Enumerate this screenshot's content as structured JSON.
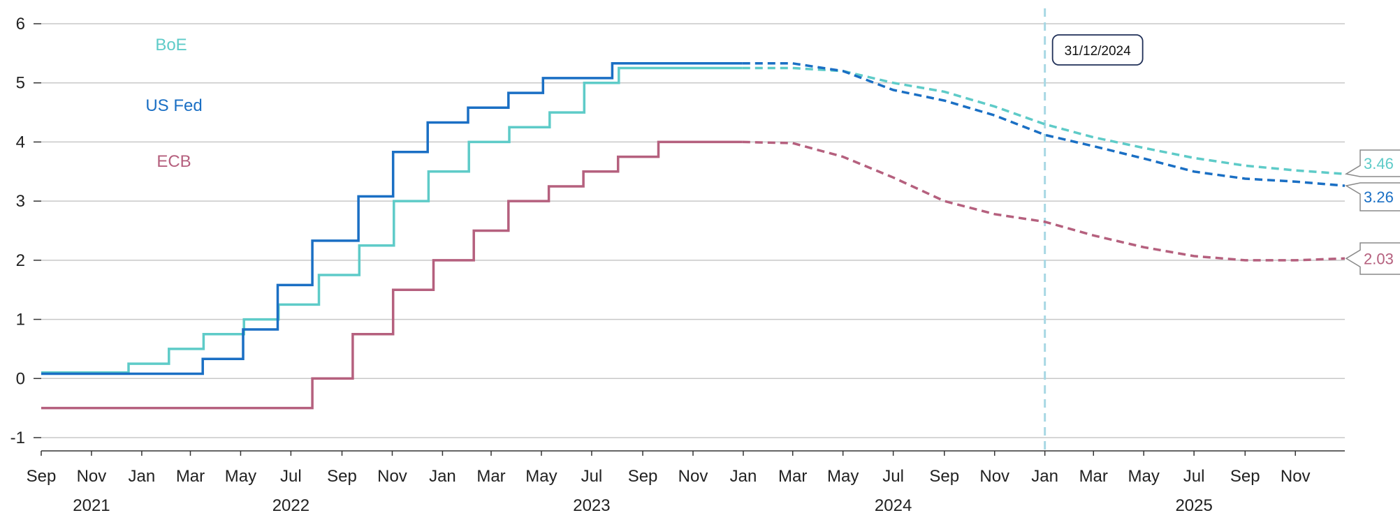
{
  "chart_data": {
    "type": "line",
    "xlim": [
      "2021-09-01",
      "2025-12-31"
    ],
    "ylim": [
      -1,
      6
    ],
    "y_ticks": [
      "-1",
      "0",
      "1",
      "2",
      "3",
      "4",
      "5",
      "6"
    ],
    "month_ticks": [
      {
        "date": "2021-09-01",
        "label": "Sep"
      },
      {
        "date": "2021-11-01",
        "label": "Nov"
      },
      {
        "date": "2022-01-01",
        "label": "Jan"
      },
      {
        "date": "2022-03-01",
        "label": "Mar"
      },
      {
        "date": "2022-05-01",
        "label": "May"
      },
      {
        "date": "2022-07-01",
        "label": "Jul"
      },
      {
        "date": "2022-09-01",
        "label": "Sep"
      },
      {
        "date": "2022-11-01",
        "label": "Nov"
      },
      {
        "date": "2023-01-01",
        "label": "Jan"
      },
      {
        "date": "2023-03-01",
        "label": "Mar"
      },
      {
        "date": "2023-05-01",
        "label": "May"
      },
      {
        "date": "2023-07-01",
        "label": "Jul"
      },
      {
        "date": "2023-09-01",
        "label": "Sep"
      },
      {
        "date": "2023-11-01",
        "label": "Nov"
      },
      {
        "date": "2024-01-01",
        "label": "Jan"
      },
      {
        "date": "2024-03-01",
        "label": "Mar"
      },
      {
        "date": "2024-05-01",
        "label": "May"
      },
      {
        "date": "2024-07-01",
        "label": "Jul"
      },
      {
        "date": "2024-09-01",
        "label": "Sep"
      },
      {
        "date": "2024-11-01",
        "label": "Nov"
      },
      {
        "date": "2025-01-01",
        "label": "Jan"
      },
      {
        "date": "2025-03-01",
        "label": "Mar"
      },
      {
        "date": "2025-05-01",
        "label": "May"
      },
      {
        "date": "2025-07-01",
        "label": "Jul"
      },
      {
        "date": "2025-09-01",
        "label": "Sep"
      },
      {
        "date": "2025-11-01",
        "label": "Nov"
      }
    ],
    "years": [
      {
        "label": "2021",
        "date": "2021-11-01"
      },
      {
        "label": "2022",
        "date": "2022-07-01"
      },
      {
        "label": "2023",
        "date": "2023-07-01"
      },
      {
        "label": "2024",
        "date": "2024-07-01"
      },
      {
        "label": "2025",
        "date": "2025-07-01"
      }
    ],
    "marker": {
      "date": "2025-01-01",
      "label": "31/12/2024",
      "color": "#a8d8e4"
    },
    "grid": true,
    "series": [
      {
        "name": "BoE",
        "color": "#5ecbc8",
        "end_label": "3.46",
        "actual": [
          [
            "2021-09-01",
            0.1
          ],
          [
            "2021-12-16",
            0.1
          ],
          [
            "2021-12-16",
            0.25
          ],
          [
            "2022-02-03",
            0.25
          ],
          [
            "2022-02-03",
            0.5
          ],
          [
            "2022-03-17",
            0.5
          ],
          [
            "2022-03-17",
            0.75
          ],
          [
            "2022-05-05",
            0.75
          ],
          [
            "2022-05-05",
            1.0
          ],
          [
            "2022-06-16",
            1.0
          ],
          [
            "2022-06-16",
            1.25
          ],
          [
            "2022-08-04",
            1.25
          ],
          [
            "2022-08-04",
            1.75
          ],
          [
            "2022-09-22",
            1.75
          ],
          [
            "2022-09-22",
            2.25
          ],
          [
            "2022-11-03",
            2.25
          ],
          [
            "2022-11-03",
            3.0
          ],
          [
            "2022-12-15",
            3.0
          ],
          [
            "2022-12-15",
            3.5
          ],
          [
            "2023-02-02",
            3.5
          ],
          [
            "2023-02-02",
            4.0
          ],
          [
            "2023-03-23",
            4.0
          ],
          [
            "2023-03-23",
            4.25
          ],
          [
            "2023-05-11",
            4.25
          ],
          [
            "2023-05-11",
            4.5
          ],
          [
            "2023-06-22",
            4.5
          ],
          [
            "2023-06-22",
            5.0
          ],
          [
            "2023-08-03",
            5.0
          ],
          [
            "2023-08-03",
            5.25
          ],
          [
            "2023-12-31",
            5.25
          ]
        ],
        "forecast": [
          [
            "2023-12-31",
            5.25
          ],
          [
            "2024-03-01",
            5.25
          ],
          [
            "2024-05-01",
            5.2
          ],
          [
            "2024-07-01",
            5.0
          ],
          [
            "2024-09-01",
            4.85
          ],
          [
            "2024-11-01",
            4.6
          ],
          [
            "2025-01-01",
            4.3
          ],
          [
            "2025-03-01",
            4.08
          ],
          [
            "2025-05-01",
            3.9
          ],
          [
            "2025-07-01",
            3.73
          ],
          [
            "2025-09-01",
            3.6
          ],
          [
            "2025-11-01",
            3.52
          ],
          [
            "2025-12-31",
            3.46
          ]
        ]
      },
      {
        "name": "US Fed",
        "color": "#1a6fc4",
        "end_label": "3.26",
        "actual": [
          [
            "2021-09-01",
            0.08
          ],
          [
            "2022-03-16",
            0.08
          ],
          [
            "2022-03-16",
            0.33
          ],
          [
            "2022-05-04",
            0.33
          ],
          [
            "2022-05-04",
            0.83
          ],
          [
            "2022-06-15",
            0.83
          ],
          [
            "2022-06-15",
            1.58
          ],
          [
            "2022-07-27",
            1.58
          ],
          [
            "2022-07-27",
            2.33
          ],
          [
            "2022-09-21",
            2.33
          ],
          [
            "2022-09-21",
            3.08
          ],
          [
            "2022-11-02",
            3.08
          ],
          [
            "2022-11-02",
            3.83
          ],
          [
            "2022-12-14",
            3.83
          ],
          [
            "2022-12-14",
            4.33
          ],
          [
            "2023-02-01",
            4.33
          ],
          [
            "2023-02-01",
            4.58
          ],
          [
            "2023-03-22",
            4.58
          ],
          [
            "2023-03-22",
            4.83
          ],
          [
            "2023-05-03",
            4.83
          ],
          [
            "2023-05-03",
            5.08
          ],
          [
            "2023-07-26",
            5.08
          ],
          [
            "2023-07-26",
            5.33
          ],
          [
            "2023-12-31",
            5.33
          ]
        ],
        "forecast": [
          [
            "2023-12-31",
            5.33
          ],
          [
            "2024-03-01",
            5.33
          ],
          [
            "2024-05-01",
            5.2
          ],
          [
            "2024-07-01",
            4.88
          ],
          [
            "2024-09-01",
            4.7
          ],
          [
            "2024-11-01",
            4.45
          ],
          [
            "2025-01-01",
            4.12
          ],
          [
            "2025-03-01",
            3.93
          ],
          [
            "2025-05-01",
            3.72
          ],
          [
            "2025-07-01",
            3.5
          ],
          [
            "2025-09-01",
            3.38
          ],
          [
            "2025-11-01",
            3.33
          ],
          [
            "2025-12-31",
            3.26
          ]
        ]
      },
      {
        "name": "ECB",
        "color": "#b5607e",
        "end_label": "2.03",
        "actual": [
          [
            "2021-09-01",
            -0.5
          ],
          [
            "2022-07-27",
            -0.5
          ],
          [
            "2022-07-27",
            0.0
          ],
          [
            "2022-09-14",
            0.0
          ],
          [
            "2022-09-14",
            0.75
          ],
          [
            "2022-11-02",
            0.75
          ],
          [
            "2022-11-02",
            1.5
          ],
          [
            "2022-12-21",
            1.5
          ],
          [
            "2022-12-21",
            2.0
          ],
          [
            "2023-02-08",
            2.0
          ],
          [
            "2023-02-08",
            2.5
          ],
          [
            "2023-03-22",
            2.5
          ],
          [
            "2023-03-22",
            3.0
          ],
          [
            "2023-05-10",
            3.0
          ],
          [
            "2023-05-10",
            3.25
          ],
          [
            "2023-06-21",
            3.25
          ],
          [
            "2023-06-21",
            3.5
          ],
          [
            "2023-08-02",
            3.5
          ],
          [
            "2023-08-02",
            3.75
          ],
          [
            "2023-09-20",
            3.75
          ],
          [
            "2023-09-20",
            4.0
          ],
          [
            "2023-12-31",
            4.0
          ]
        ],
        "forecast": [
          [
            "2023-12-31",
            4.0
          ],
          [
            "2024-03-01",
            3.98
          ],
          [
            "2024-05-01",
            3.75
          ],
          [
            "2024-07-01",
            3.4
          ],
          [
            "2024-09-01",
            3.0
          ],
          [
            "2024-11-01",
            2.78
          ],
          [
            "2025-01-01",
            2.65
          ],
          [
            "2025-03-01",
            2.42
          ],
          [
            "2025-05-01",
            2.22
          ],
          [
            "2025-07-01",
            2.07
          ],
          [
            "2025-09-01",
            2.0
          ],
          [
            "2025-11-01",
            2.0
          ],
          [
            "2025-12-31",
            2.03
          ]
        ]
      }
    ]
  }
}
